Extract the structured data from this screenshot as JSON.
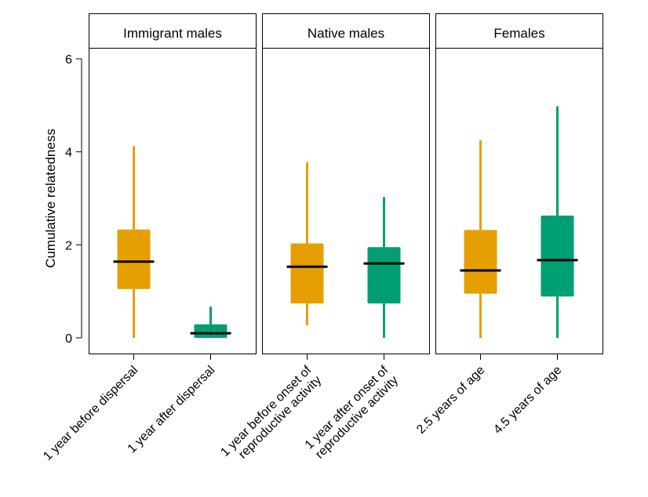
{
  "chart_data": {
    "type": "boxplot",
    "ylabel": "Cumulative relatedness",
    "xlabel": "",
    "ylim": [
      -0.3,
      6.3
    ],
    "yticks": [
      0,
      2,
      4,
      6
    ],
    "grid": false,
    "colors": {
      "before": "#E69F00",
      "after": "#009E73",
      "median": "#000000"
    },
    "panels": [
      {
        "title": "Immigrant males",
        "groups": [
          {
            "label_lines": [
              "1 year before dispersal"
            ],
            "color_key": "before",
            "min": 0.0,
            "q1": 1.05,
            "median": 1.64,
            "q3": 2.33,
            "max": 4.12
          },
          {
            "label_lines": [
              "1 year after dispersal"
            ],
            "color_key": "after",
            "min": 0.0,
            "q1": 0.0,
            "median": 0.1,
            "q3": 0.29,
            "max": 0.67
          }
        ]
      },
      {
        "title": "Native males",
        "groups": [
          {
            "label_lines": [
              "1 year before onset of",
              "reproductive activity"
            ],
            "color_key": "before",
            "min": 0.27,
            "q1": 0.74,
            "median": 1.53,
            "q3": 2.03,
            "max": 3.78
          },
          {
            "label_lines": [
              "1 year after onset of",
              "reproductive activity"
            ],
            "color_key": "after",
            "min": 0.0,
            "q1": 0.74,
            "median": 1.6,
            "q3": 1.95,
            "max": 3.03
          }
        ]
      },
      {
        "title": "Females",
        "groups": [
          {
            "label_lines": [
              "2.5 years of age"
            ],
            "color_key": "before",
            "min": 0.0,
            "q1": 0.95,
            "median": 1.45,
            "q3": 2.32,
            "max": 4.25
          },
          {
            "label_lines": [
              "4.5 years of age"
            ],
            "color_key": "after",
            "min": 0.0,
            "q1": 0.89,
            "median": 1.67,
            "q3": 2.63,
            "max": 4.98
          }
        ]
      }
    ]
  }
}
